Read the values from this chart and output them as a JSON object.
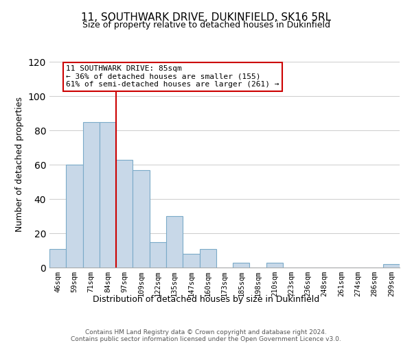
{
  "title": "11, SOUTHWARK DRIVE, DUKINFIELD, SK16 5RL",
  "subtitle": "Size of property relative to detached houses in Dukinfield",
  "xlabel": "Distribution of detached houses by size in Dukinfield",
  "ylabel": "Number of detached properties",
  "bar_labels": [
    "46sqm",
    "59sqm",
    "71sqm",
    "84sqm",
    "97sqm",
    "109sqm",
    "122sqm",
    "135sqm",
    "147sqm",
    "160sqm",
    "173sqm",
    "185sqm",
    "198sqm",
    "210sqm",
    "223sqm",
    "236sqm",
    "248sqm",
    "261sqm",
    "274sqm",
    "286sqm",
    "299sqm"
  ],
  "bar_values": [
    11,
    60,
    85,
    85,
    63,
    57,
    15,
    30,
    8,
    11,
    0,
    3,
    0,
    3,
    0,
    0,
    0,
    0,
    0,
    0,
    2
  ],
  "bar_color": "#c8d8e8",
  "bar_edge_color": "#7aaac8",
  "highlight_line_index": 3,
  "highlight_line_color": "#cc0000",
  "ylim": [
    0,
    120
  ],
  "yticks": [
    0,
    20,
    40,
    60,
    80,
    100,
    120
  ],
  "annotation_box_text": "11 SOUTHWARK DRIVE: 85sqm\n← 36% of detached houses are smaller (155)\n61% of semi-detached houses are larger (261) →",
  "annotation_box_edge_color": "#cc0000",
  "annotation_box_face_color": "#ffffff",
  "footer_line1": "Contains HM Land Registry data © Crown copyright and database right 2024.",
  "footer_line2": "Contains public sector information licensed under the Open Government Licence v3.0.",
  "background_color": "#ffffff",
  "grid_color": "#cccccc"
}
